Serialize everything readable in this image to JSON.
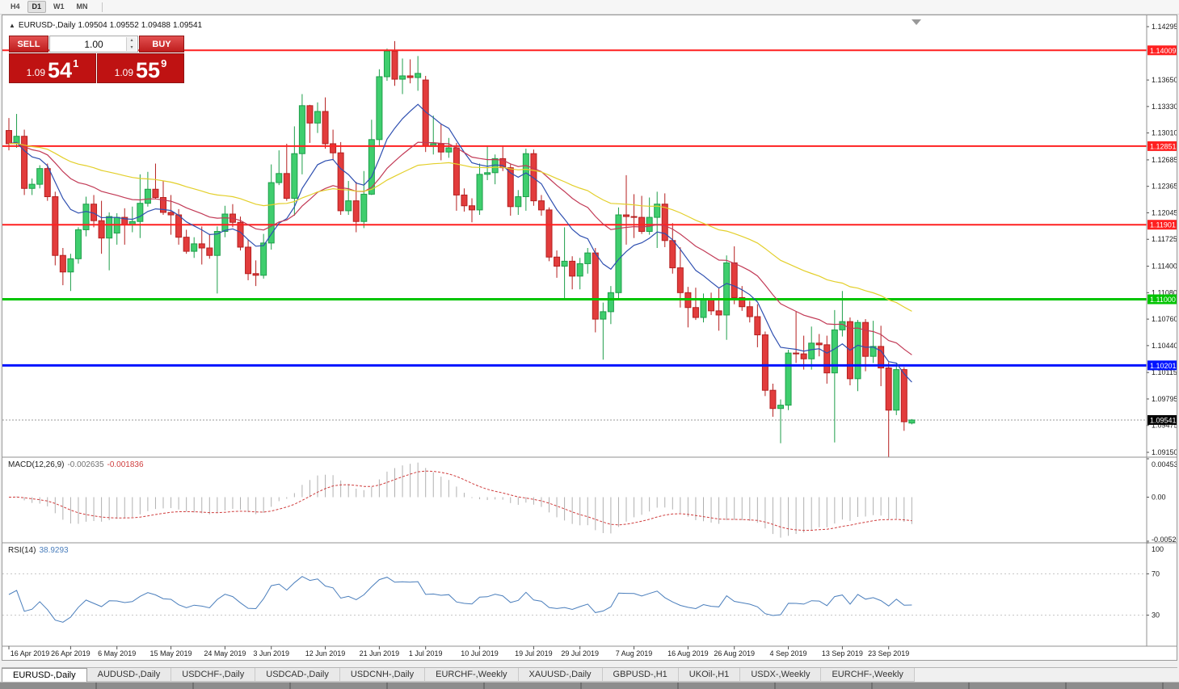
{
  "toolbar": {
    "timeframes": [
      {
        "label": "H4",
        "active": false
      },
      {
        "label": "D1",
        "active": true
      },
      {
        "label": "W1",
        "active": false
      },
      {
        "label": "MN",
        "active": false
      }
    ]
  },
  "chart": {
    "title": "EURUSD-,Daily",
    "ohlc": {
      "open": "1.09504",
      "high": "1.09552",
      "low": "1.09488",
      "close": "1.09541"
    },
    "trade_panel": {
      "sell_label": "SELL",
      "buy_label": "BUY",
      "volume": "1.00",
      "bid": {
        "prefix": "1.09",
        "big": "54",
        "pip": "1"
      },
      "ask": {
        "prefix": "1.09",
        "big": "55",
        "pip": "9"
      }
    },
    "axis": {
      "price_ticks": [
        "1.14295",
        "1.13650",
        "1.13330",
        "1.13010",
        "1.12685",
        "1.12365",
        "1.12045",
        "1.11725",
        "1.11400",
        "1.11080",
        "1.10760",
        "1.10440",
        "1.10115",
        "1.09795",
        "1.09475",
        "1.09150"
      ]
    },
    "levels": [
      {
        "price": 1.14009,
        "label": "1.14009",
        "color": "#ff2020",
        "width": 2
      },
      {
        "price": 1.12851,
        "label": "1.12851",
        "color": "#ff2020",
        "width": 2
      },
      {
        "price": 1.11901,
        "label": "1.11901",
        "color": "#ff2020",
        "width": 2
      },
      {
        "price": 1.11,
        "label": "1.11000",
        "color": "#00c400",
        "width": 3
      },
      {
        "price": 1.10201,
        "label": "1.10201",
        "color": "#0013ff",
        "width": 3
      }
    ],
    "current_price": {
      "value": 1.09541,
      "label": "1.09541",
      "color": "#000000"
    }
  },
  "indicators": {
    "macd": {
      "name": "MACD(12,26,9)",
      "value1": "-0.002635",
      "value2": "-0.001836",
      "fast": 12,
      "slow": 26,
      "signal": 9,
      "range_max": 0.004536,
      "range_min": -0.005204,
      "axis": [
        {
          "label": "0.004536",
          "v": 0.004536
        },
        {
          "label": "0.00",
          "v": 0
        },
        {
          "label": "-0.005204",
          "v": -0.005204
        }
      ]
    },
    "rsi": {
      "name": "RSI(14)",
      "value": "38.9293",
      "period": 14,
      "levels": [
        70,
        30
      ],
      "axis": [
        {
          "label": "100",
          "v": 100
        },
        {
          "label": "70",
          "v": 70
        },
        {
          "label": "30",
          "v": 30
        }
      ]
    }
  },
  "colors": {
    "bull": "#3fce6e",
    "bull_border": "#1e9e4a",
    "bear": "#e23c3c",
    "bear_border": "#b51f1f",
    "macd_hist": "#b0b0b0",
    "macd_signal": "#cf3d3d",
    "rsi_line": "#4a7ebc",
    "current_line": "#9a9a9a"
  },
  "chart_data": {
    "type": "candlestick",
    "symbol": "EURUSD-",
    "timeframe": "Daily",
    "title": "EURUSD-,Daily",
    "ylim": [
      1.0909,
      1.1436
    ],
    "x_labels": [
      "16 Apr 2019",
      "26 Apr 2019",
      "6 May 2019",
      "15 May 2019",
      "24 May 2019",
      "3 Jun 2019",
      "12 Jun 2019",
      "21 Jun 2019",
      "1 Jul 2019",
      "10 Jul 2019",
      "19 Jul 2019",
      "29 Jul 2019",
      "7 Aug 2019",
      "16 Aug 2019",
      "26 Aug 2019",
      "4 Sep 2019",
      "13 Sep 2019",
      "23 Sep 2019"
    ],
    "label_indices": [
      0,
      8,
      14,
      21,
      28,
      34,
      41,
      48,
      54,
      61,
      68,
      74,
      81,
      88,
      94,
      101,
      108,
      114
    ],
    "moving_averages": [
      {
        "type": "ema",
        "period": 10,
        "color": "#2e4fb0"
      },
      {
        "type": "ema",
        "period": 24,
        "color": "#c23a56"
      },
      {
        "type": "ema",
        "period": 52,
        "color": "#e3cf2a"
      }
    ],
    "candles": [
      [
        "04-16",
        1.1304,
        1.1319,
        1.128,
        1.1288
      ],
      [
        "04-17",
        1.1288,
        1.1324,
        1.1283,
        1.1297
      ],
      [
        "04-18",
        1.1297,
        1.1305,
        1.1226,
        1.1234
      ],
      [
        "04-19",
        1.1234,
        1.1246,
        1.1226,
        1.1239
      ],
      [
        "04-22",
        1.1239,
        1.1262,
        1.1234,
        1.1258
      ],
      [
        "04-23",
        1.1258,
        1.1264,
        1.1219,
        1.1224
      ],
      [
        "04-24",
        1.1224,
        1.123,
        1.1141,
        1.1153
      ],
      [
        "04-25",
        1.1153,
        1.1162,
        1.1117,
        1.1133
      ],
      [
        "04-26",
        1.1133,
        1.1155,
        1.111,
        1.1149
      ],
      [
        "04-29",
        1.1149,
        1.1187,
        1.1143,
        1.1184
      ],
      [
        "04-30",
        1.1184,
        1.1224,
        1.1176,
        1.1215
      ],
      [
        "05-01",
        1.1215,
        1.1226,
        1.1187,
        1.1195
      ],
      [
        "05-02",
        1.1195,
        1.1219,
        1.1155,
        1.1174
      ],
      [
        "05-03",
        1.1174,
        1.1205,
        1.1135,
        1.12
      ],
      [
        "05-06",
        1.118,
        1.1204,
        1.1166,
        1.1199
      ],
      [
        "05-07",
        1.1199,
        1.121,
        1.1166,
        1.119
      ],
      [
        "05-08",
        1.119,
        1.1212,
        1.1181,
        1.1194
      ],
      [
        "05-09",
        1.1194,
        1.1251,
        1.1174,
        1.1216
      ],
      [
        "05-10",
        1.1216,
        1.1254,
        1.1212,
        1.1233
      ],
      [
        "05-13",
        1.1233,
        1.1264,
        1.1221,
        1.1223
      ],
      [
        "05-14",
        1.1223,
        1.1243,
        1.1202,
        1.1205
      ],
      [
        "05-15",
        1.1205,
        1.1226,
        1.1178,
        1.1202
      ],
      [
        "05-16",
        1.1202,
        1.1209,
        1.1166,
        1.1175
      ],
      [
        "05-17",
        1.1175,
        1.1184,
        1.1155,
        1.1158
      ],
      [
        "05-20",
        1.1158,
        1.1175,
        1.115,
        1.1167
      ],
      [
        "05-21",
        1.1167,
        1.1188,
        1.1142,
        1.1162
      ],
      [
        "05-22",
        1.1162,
        1.1179,
        1.1149,
        1.1153
      ],
      [
        "05-23",
        1.1153,
        1.1188,
        1.1107,
        1.1182
      ],
      [
        "05-24",
        1.1182,
        1.1213,
        1.1175,
        1.1203
      ],
      [
        "05-27",
        1.1203,
        1.1215,
        1.1187,
        1.1193
      ],
      [
        "05-28",
        1.1193,
        1.12,
        1.1159,
        1.1163
      ],
      [
        "05-29",
        1.1163,
        1.1172,
        1.1123,
        1.1131
      ],
      [
        "05-30",
        1.1131,
        1.1147,
        1.1116,
        1.1129
      ],
      [
        "05-31",
        1.1129,
        1.1179,
        1.1125,
        1.1168
      ],
      [
        "06-03",
        1.1168,
        1.1263,
        1.116,
        1.1241
      ],
      [
        "06-04",
        1.1241,
        1.128,
        1.1238,
        1.1252
      ],
      [
        "06-05",
        1.1252,
        1.1288,
        1.1219,
        1.1222
      ],
      [
        "06-06",
        1.1222,
        1.1309,
        1.1201,
        1.1276
      ],
      [
        "06-07",
        1.1276,
        1.1348,
        1.1251,
        1.1334
      ],
      [
        "06-10",
        1.1334,
        1.1335,
        1.1289,
        1.1313
      ],
      [
        "06-11",
        1.1313,
        1.1338,
        1.1301,
        1.1327
      ],
      [
        "06-12",
        1.1327,
        1.1344,
        1.1282,
        1.1288
      ],
      [
        "06-13",
        1.1288,
        1.1305,
        1.1268,
        1.1277
      ],
      [
        "06-14",
        1.1277,
        1.129,
        1.1202,
        1.1207
      ],
      [
        "06-17",
        1.1207,
        1.1243,
        1.1202,
        1.1219
      ],
      [
        "06-18",
        1.1219,
        1.1242,
        1.1181,
        1.1194
      ],
      [
        "06-19",
        1.1194,
        1.1255,
        1.1186,
        1.1227
      ],
      [
        "06-20",
        1.1227,
        1.1317,
        1.1226,
        1.1293
      ],
      [
        "06-21",
        1.1293,
        1.1378,
        1.1285,
        1.1369
      ],
      [
        "06-24",
        1.1369,
        1.1403,
        1.1364,
        1.14
      ],
      [
        "06-25",
        1.14,
        1.1412,
        1.1358,
        1.1366
      ],
      [
        "06-26",
        1.1366,
        1.1391,
        1.1348,
        1.137
      ],
      [
        "06-27",
        1.137,
        1.139,
        1.1361,
        1.1368
      ],
      [
        "06-28",
        1.1368,
        1.1394,
        1.1352,
        1.1373
      ],
      [
        "07-01",
        1.1365,
        1.137,
        1.1278,
        1.1285
      ],
      [
        "07-02",
        1.1285,
        1.1322,
        1.1275,
        1.1288
      ],
      [
        "07-03",
        1.1288,
        1.1312,
        1.1268,
        1.1278
      ],
      [
        "07-04",
        1.1278,
        1.1295,
        1.1271,
        1.1283
      ],
      [
        "07-05",
        1.1283,
        1.1289,
        1.1207,
        1.1226
      ],
      [
        "07-08",
        1.1226,
        1.1234,
        1.1206,
        1.1213
      ],
      [
        "07-09",
        1.1213,
        1.1222,
        1.1193,
        1.1208
      ],
      [
        "07-10",
        1.1208,
        1.1264,
        1.1202,
        1.1251
      ],
      [
        "07-11",
        1.1251,
        1.1286,
        1.1244,
        1.1253
      ],
      [
        "07-12",
        1.1253,
        1.1275,
        1.1239,
        1.127
      ],
      [
        "07-15",
        1.127,
        1.1285,
        1.1255,
        1.1259
      ],
      [
        "07-16",
        1.1259,
        1.1263,
        1.1201,
        1.1212
      ],
      [
        "07-17",
        1.1212,
        1.1232,
        1.1202,
        1.1224
      ],
      [
        "07-18",
        1.1224,
        1.1282,
        1.1207,
        1.1276
      ],
      [
        "07-19",
        1.1276,
        1.1281,
        1.1213,
        1.1219
      ],
      [
        "07-22",
        1.1219,
        1.1226,
        1.1201,
        1.1208
      ],
      [
        "07-23",
        1.1208,
        1.1211,
        1.1146,
        1.1151
      ],
      [
        "07-24",
        1.1151,
        1.1159,
        1.1126,
        1.114
      ],
      [
        "07-25",
        1.114,
        1.1187,
        1.1101,
        1.1146
      ],
      [
        "07-26",
        1.1146,
        1.1152,
        1.1112,
        1.1128
      ],
      [
        "07-29",
        1.1128,
        1.115,
        1.1112,
        1.1143
      ],
      [
        "07-30",
        1.1143,
        1.1162,
        1.1131,
        1.1156
      ],
      [
        "07-31",
        1.1156,
        1.1162,
        1.106,
        1.1076
      ],
      [
        "08-01",
        1.1076,
        1.1096,
        1.1027,
        1.1085
      ],
      [
        "08-02",
        1.1085,
        1.1116,
        1.107,
        1.1108
      ],
      [
        "08-05",
        1.1108,
        1.1211,
        1.1101,
        1.1202
      ],
      [
        "08-06",
        1.1202,
        1.125,
        1.1166,
        1.12
      ],
      [
        "08-07",
        1.12,
        1.1227,
        1.1174,
        1.1199
      ],
      [
        "08-08",
        1.1199,
        1.1225,
        1.1179,
        1.1182
      ],
      [
        "08-09",
        1.1182,
        1.1223,
        1.1178,
        1.1199
      ],
      [
        "08-12",
        1.1199,
        1.123,
        1.1162,
        1.1215
      ],
      [
        "08-13",
        1.1215,
        1.1228,
        1.1163,
        1.1171
      ],
      [
        "08-14",
        1.1171,
        1.1192,
        1.1131,
        1.1138
      ],
      [
        "08-15",
        1.1138,
        1.1163,
        1.109,
        1.1108
      ],
      [
        "08-16",
        1.1108,
        1.1115,
        1.1066,
        1.109
      ],
      [
        "08-19",
        1.109,
        1.1114,
        1.1075,
        1.1078
      ],
      [
        "08-20",
        1.1078,
        1.1107,
        1.1072,
        1.11
      ],
      [
        "08-21",
        1.11,
        1.1108,
        1.1081,
        1.1086
      ],
      [
        "08-22",
        1.1086,
        1.1113,
        1.1062,
        1.1081
      ],
      [
        "08-23",
        1.1081,
        1.1153,
        1.1051,
        1.1144
      ],
      [
        "08-26",
        1.1144,
        1.1164,
        1.1094,
        1.1102
      ],
      [
        "08-27",
        1.1102,
        1.1116,
        1.1086,
        1.1091
      ],
      [
        "08-28",
        1.1091,
        1.1098,
        1.1072,
        1.1079
      ],
      [
        "08-29",
        1.1079,
        1.1094,
        1.1042,
        1.1057
      ],
      [
        "08-30",
        1.1057,
        1.1061,
        1.0983,
        1.099
      ],
      [
        "09-02",
        1.099,
        1.0998,
        1.0958,
        1.0968
      ],
      [
        "09-03",
        1.0968,
        1.0979,
        1.0926,
        1.0972
      ],
      [
        "09-04",
        1.0972,
        1.1039,
        1.0966,
        1.1035
      ],
      [
        "09-05",
        1.1035,
        1.1085,
        1.1023,
        1.1034
      ],
      [
        "09-06",
        1.1034,
        1.1056,
        1.1015,
        1.1028
      ],
      [
        "09-09",
        1.1028,
        1.1067,
        1.1015,
        1.1047
      ],
      [
        "09-10",
        1.1047,
        1.1058,
        1.1031,
        1.1045
      ],
      [
        "09-11",
        1.1045,
        1.1056,
        1.0998,
        1.1011
      ],
      [
        "09-12",
        1.1011,
        1.1087,
        1.0927,
        1.1063
      ],
      [
        "09-13",
        1.1063,
        1.111,
        1.1055,
        1.1073
      ],
      [
        "09-16",
        1.1073,
        1.1078,
        1.0996,
        1.1004
      ],
      [
        "09-17",
        1.1004,
        1.1075,
        1.0989,
        1.1072
      ],
      [
        "09-18",
        1.1072,
        1.1076,
        1.1013,
        1.1031
      ],
      [
        "09-19",
        1.1031,
        1.1074,
        1.1023,
        1.1043
      ],
      [
        "09-20",
        1.1043,
        1.1068,
        1.0995,
        1.1017
      ],
      [
        "09-23",
        1.1017,
        1.1024,
        1.0905,
        1.0966
      ],
      [
        "09-24",
        1.0966,
        1.1022,
        1.096,
        1.1015
      ],
      [
        "09-25",
        1.1015,
        1.1018,
        1.0941,
        1.0952
      ],
      [
        "09-26",
        1.09504,
        1.09552,
        1.09488,
        1.09541
      ]
    ]
  },
  "tabs": [
    {
      "label": "EURUSD-,Daily",
      "active": true
    },
    {
      "label": "AUDUSD-,Daily",
      "active": false
    },
    {
      "label": "USDCHF-,Daily",
      "active": false
    },
    {
      "label": "USDCAD-,Daily",
      "active": false
    },
    {
      "label": "USDCNH-,Daily",
      "active": false
    },
    {
      "label": "EURCHF-,Weekly",
      "active": false
    },
    {
      "label": "XAUUSD-,Daily",
      "active": false
    },
    {
      "label": "GBPUSD-,H1",
      "active": false
    },
    {
      "label": "UKOil-,H1",
      "active": false
    },
    {
      "label": "USDX-,Weekly",
      "active": false
    },
    {
      "label": "EURCHF-,Weekly",
      "active": false
    }
  ]
}
